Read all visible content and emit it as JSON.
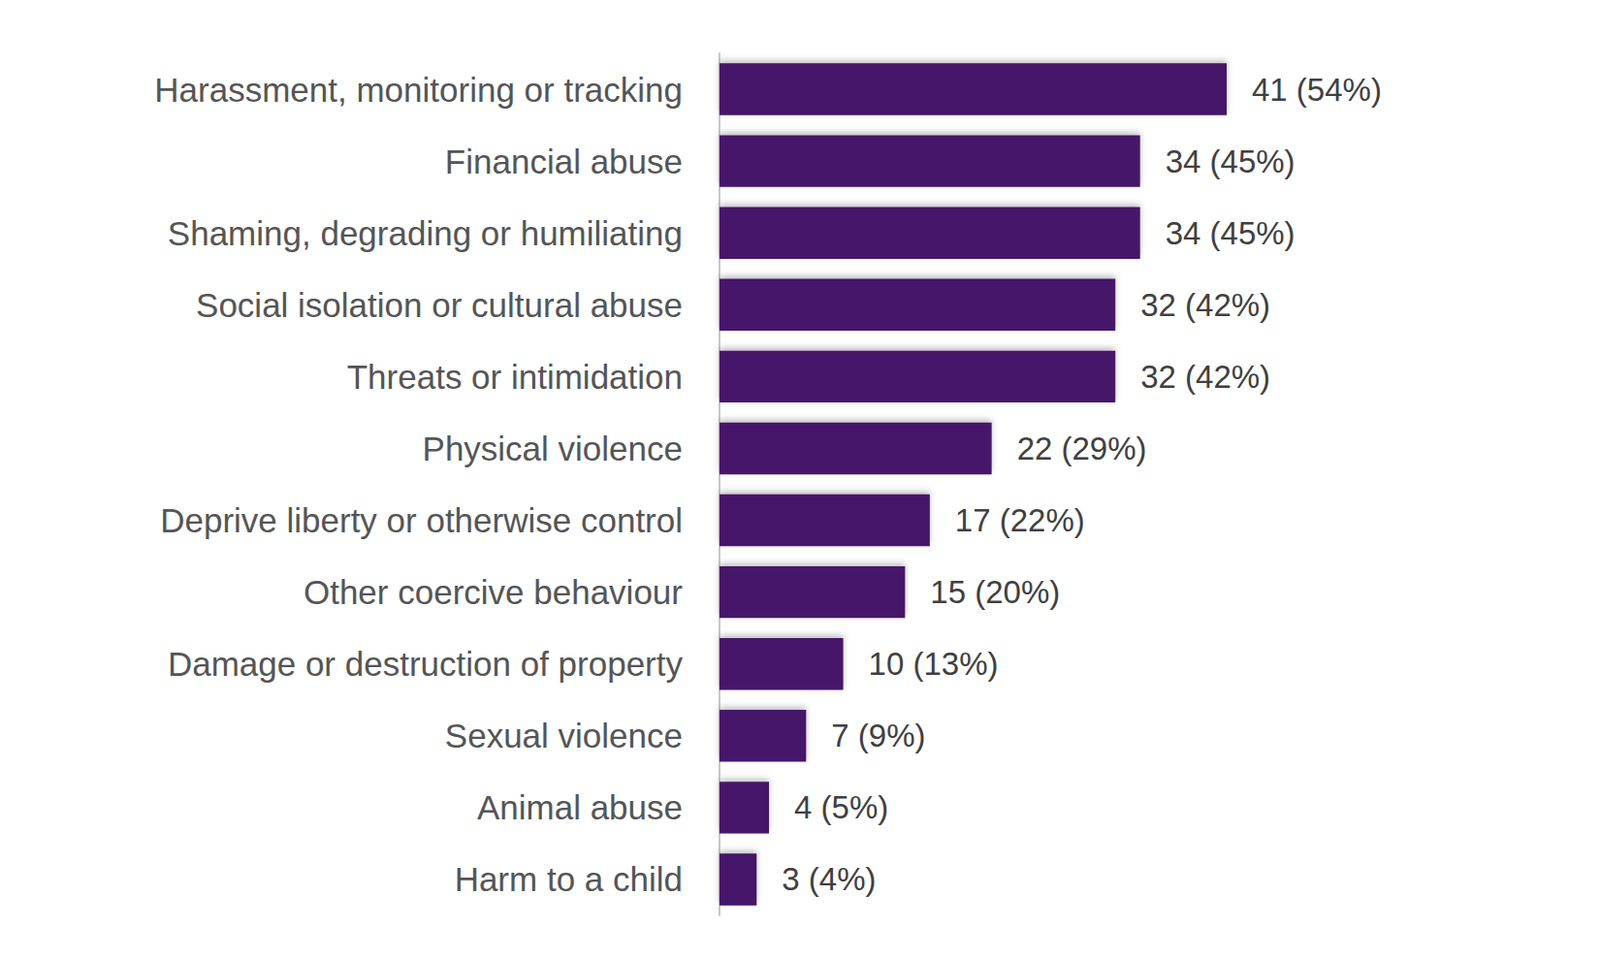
{
  "chart_data": {
    "type": "bar",
    "orientation": "horizontal",
    "categories": [
      "Harassment, monitoring or tracking",
      "Financial abuse",
      "Shaming, degrading or humiliating",
      "Social isolation or cultural abuse",
      "Threats or intimidation",
      "Physical violence",
      "Deprive liberty or otherwise control",
      "Other coercive behaviour",
      "Damage or destruction of property",
      "Sexual violence",
      "Animal abuse",
      "Harm to a child"
    ],
    "values": [
      41,
      34,
      34,
      32,
      32,
      22,
      17,
      15,
      10,
      7,
      4,
      3
    ],
    "value_labels": [
      "41 (54%)",
      "34 (45%)",
      "34 (45%)",
      "32 (42%)",
      "32 (42%)",
      "22 (29%)",
      "17 (22%)",
      "15 (20%)",
      "10 (13%)",
      "7 (9%)",
      "4 (5%)",
      "3 (4%)"
    ],
    "color": "#44136b",
    "xlim": [
      0,
      41
    ],
    "grid": false,
    "data_labels": true,
    "tick_labels": "y"
  }
}
